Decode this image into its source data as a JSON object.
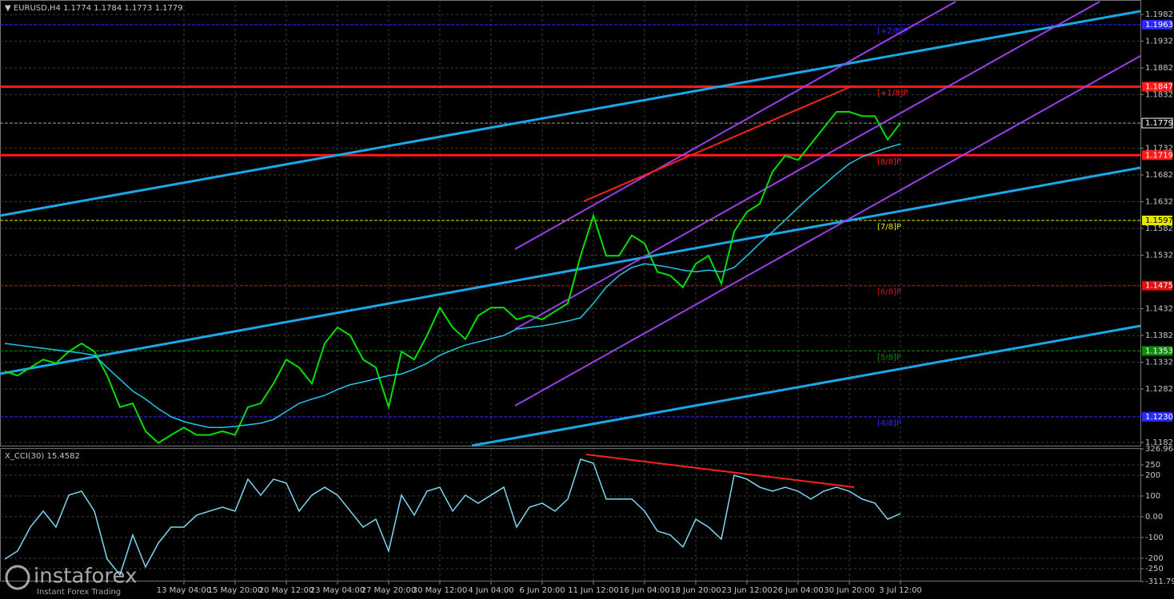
{
  "logo": {
    "name": "instaforex",
    "tagline": "Instant Forex Trading"
  },
  "chart_data": [
    {
      "type": "line",
      "title": "EURUSD,H4  1.1774 1.1784 1.1773 1.1779",
      "categories": [
        null,
        null,
        null,
        null,
        null,
        null,
        null,
        null,
        null,
        null,
        null,
        null,
        null,
        null,
        "13 May 04:00",
        null,
        null,
        null,
        "15 May 20:00",
        null,
        null,
        null,
        "20 May 12:00",
        null,
        null,
        null,
        "23 May 04:00",
        null,
        null,
        null,
        "27 May 20:00",
        null,
        null,
        null,
        "30 May 12:00",
        null,
        null,
        null,
        "4 Jun 04:00",
        null,
        null,
        null,
        "6 Jun 20:00",
        null,
        null,
        null,
        "11 Jun 12:00",
        null,
        null,
        null,
        "16 Jun 04:00",
        null,
        null,
        null,
        "18 Jun 20:00",
        null,
        null,
        null,
        "23 Jun 12:00",
        null,
        null,
        null,
        "26 Jun 04:00",
        null,
        null,
        null,
        "30 Jun 20:00",
        null,
        null,
        null,
        "3 Jul 12:00"
      ],
      "series": [
        {
          "color": "#00e000",
          "values": [
            1.1315,
            1.1307,
            1.1322,
            1.1337,
            1.133,
            1.1352,
            1.1367,
            1.1352,
            1.1307,
            1.1248,
            1.1255,
            1.1203,
            1.1181,
            1.1196,
            1.121,
            1.1196,
            1.1196,
            1.1203,
            1.1196,
            1.1248,
            1.1255,
            1.1292,
            1.1337,
            1.1322,
            1.1292,
            1.1367,
            1.1397,
            1.1382,
            1.1337,
            1.1322,
            1.1248,
            1.1352,
            1.1337,
            1.1382,
            1.1434,
            1.1397,
            1.1375,
            1.1419,
            1.1434,
            1.1434,
            1.1412,
            1.1419,
            1.1412,
            1.1427,
            1.1442,
            1.1531,
            1.1606,
            1.1531,
            1.1531,
            1.1569,
            1.1554,
            1.1501,
            1.1494,
            1.1472,
            1.1516,
            1.1531,
            1.1479,
            1.1576,
            1.1613,
            1.1628,
            1.1688,
            1.1718,
            1.171,
            1.174,
            1.177,
            1.18,
            1.18,
            1.1792,
            1.1792,
            1.1748,
            1.1779
          ]
        },
        {
          "color": "#20c8e8",
          "values": [
            1.1367,
            1.1364,
            1.1361,
            1.1358,
            1.1355,
            1.1352,
            1.1349,
            1.1345,
            1.1322,
            1.13,
            1.1278,
            1.1263,
            1.1245,
            1.123,
            1.1221,
            1.1215,
            1.121,
            1.121,
            1.1212,
            1.1215,
            1.1218,
            1.1225,
            1.124,
            1.1255,
            1.1263,
            1.127,
            1.1281,
            1.129,
            1.1295,
            1.1301,
            1.1307,
            1.131,
            1.1319,
            1.133,
            1.1345,
            1.1355,
            1.1364,
            1.137,
            1.1376,
            1.1382,
            1.1394,
            1.1397,
            1.14,
            1.1404,
            1.1409,
            1.1415,
            1.1442,
            1.1472,
            1.1494,
            1.1509,
            1.1516,
            1.1513,
            1.1509,
            1.1504,
            1.1501,
            1.1504,
            1.1501,
            1.1509,
            1.1531,
            1.1554,
            1.1576,
            1.1598,
            1.1621,
            1.1643,
            1.1663,
            1.1684,
            1.1703,
            1.1716,
            1.1725,
            1.1733,
            1.174
          ]
        }
      ],
      "ylim": [
        1.1176,
        1.2009
      ],
      "yticks": [
        1.1982,
        1.1932,
        1.1882,
        1.1832,
        1.1732,
        1.1682,
        1.1632,
        1.1582,
        1.1532,
        1.1432,
        1.1382,
        1.1332,
        1.1282,
        1.1182
      ],
      "grid": true,
      "levels": [
        {
          "value": 1.1963,
          "label": "1.1963",
          "tag": "[+2/8]P",
          "color": "#2a2aff",
          "line_width": 1
        },
        {
          "value": 1.1847,
          "label": "1.1847",
          "tag": "[+1/8]P",
          "color": "#ff1a1a",
          "line_width": 3
        },
        {
          "value": 1.1779,
          "label": "1.1779",
          "color": "#9a9a9a",
          "line_width": 1
        },
        {
          "value": 1.1719,
          "label": "1.1719",
          "tag": "[8/8]P",
          "color": "#ff1a1a",
          "line_width": 3
        },
        {
          "value": 1.1597,
          "label": "1.1597",
          "tag": "[7/8]P",
          "color": "#e6e600",
          "line_width": 1
        },
        {
          "value": 1.1475,
          "label": "1.1475",
          "tag": "[6/8]P",
          "color": "#e01010",
          "line_width": 1
        },
        {
          "value": 1.1353,
          "label": "1.1353",
          "tag": "[5/8]P",
          "color": "#0c8a0c",
          "line_width": 1
        },
        {
          "value": 1.123,
          "label": "1.1230",
          "tag": "[4/8]P",
          "color": "#2a2aff",
          "line_width": 1
        }
      ]
    },
    {
      "type": "line",
      "title": "X_CCI(30) 15.4582",
      "series": [
        {
          "color": "#7fd6f0",
          "values": [
            -204,
            -165,
            -50,
            27,
            -50,
            104,
            123,
            27,
            -204,
            -281,
            -88,
            -242,
            -127,
            -50,
            -50,
            8,
            27,
            46,
            27,
            181,
            104,
            181,
            162,
            27,
            104,
            142,
            104,
            27,
            -50,
            -12,
            -165,
            104,
            8,
            123,
            142,
            27,
            104,
            65,
            104,
            142,
            -50,
            46,
            65,
            27,
            85,
            277,
            258,
            85,
            85,
            85,
            27,
            -69,
            -88,
            -146,
            -12,
            -50,
            -108,
            200,
            181,
            142,
            123,
            142,
            123,
            85,
            123,
            142,
            123,
            85,
            65,
            -12,
            15
          ]
        }
      ],
      "ylim": [
        -311.798,
        326.9647
      ],
      "yticks": [
        326.9647,
        250,
        200,
        100,
        {
          "value": 0,
          "label": "0.00"
        },
        -100,
        -200,
        -250,
        -311.798
      ],
      "grid": true
    }
  ]
}
